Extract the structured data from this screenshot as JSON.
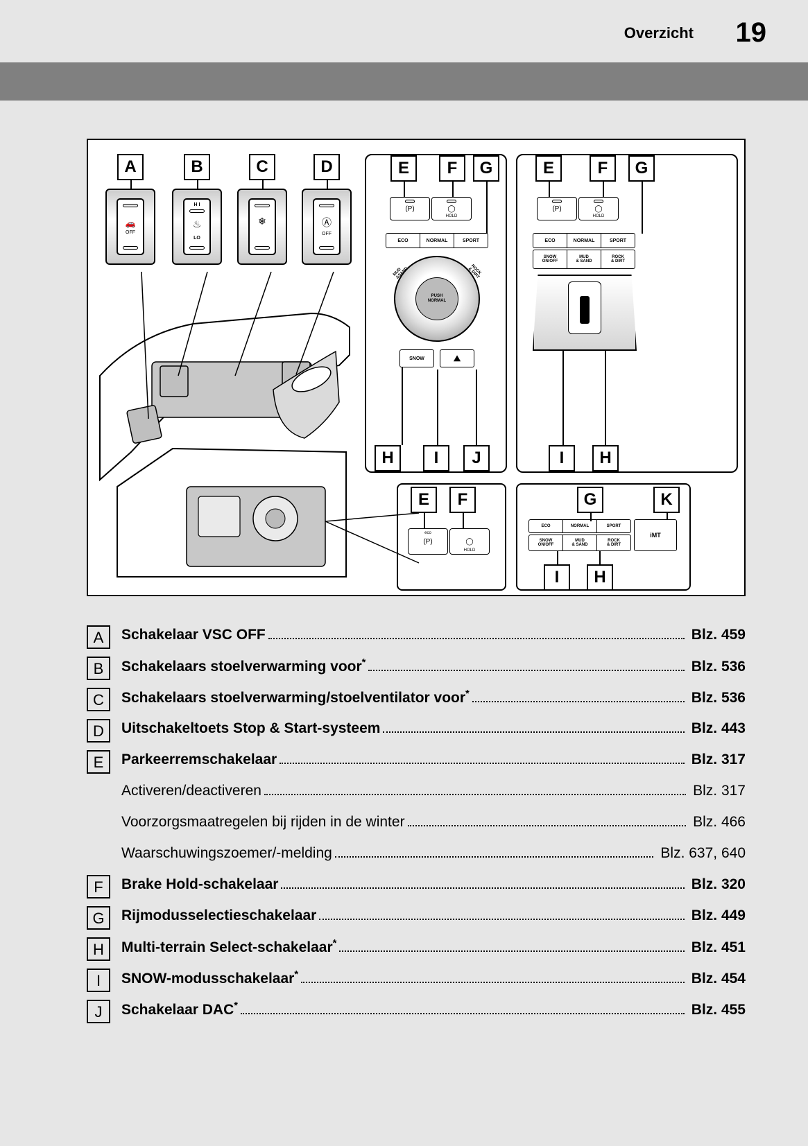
{
  "header": {
    "section_label": "Overzicht",
    "page_number": "19"
  },
  "colors": {
    "page_bg": "#e6e6e6",
    "gray_bar": "#808080",
    "diagram_bg": "#ffffff",
    "border": "#000000"
  },
  "diagram": {
    "top_callouts": [
      "A",
      "B",
      "C",
      "D",
      "E",
      "F",
      "G",
      "E",
      "F",
      "G"
    ],
    "mid_callouts_left": [
      "H",
      "I",
      "J"
    ],
    "mid_callouts_right": [
      "I",
      "H"
    ],
    "lower_callouts_left": [
      "E",
      "F"
    ],
    "lower_callouts_right": [
      "G",
      "K"
    ],
    "bottom_callouts": [
      "I",
      "H"
    ],
    "button_a": {
      "off": "OFF",
      "icon": "🚗"
    },
    "button_b": {
      "hi": "H I",
      "lo": "LO",
      "icon": "♨"
    },
    "button_c": {
      "icon": "❄♨"
    },
    "button_d": {
      "circle_a": "Ⓐ",
      "off": "OFF"
    },
    "panel_ef": {
      "p": "(P)",
      "hold": "HOLD",
      "eco": "eco"
    },
    "modes": [
      "ECO",
      "NORMAL",
      "SPORT"
    ],
    "terrain": [
      "SNOW\\nON/OFF",
      "MUD\\n& SAND",
      "ROCK\\n& DIRT"
    ],
    "terrain2": [
      "SNOW",
      "MUD\\n& SAND",
      "ROCK\\n& DIRT",
      "iMT"
    ],
    "dial": {
      "push": "PUSH",
      "normal": "NORMAL",
      "mud": "MUD\\n&SAND",
      "rock": "ROCK\\n& DIRT",
      "snow": "SNOW",
      "dac": "⛰"
    }
  },
  "legend": {
    "page_prefix": "Blz. ",
    "items": [
      {
        "letter": "A",
        "label": "Schakelaar VSC OFF",
        "bold": true,
        "page": "459"
      },
      {
        "letter": "B",
        "label": "Schakelaars stoelverwarming voor",
        "sup": "*",
        "bold": true,
        "page": "536"
      },
      {
        "letter": "C",
        "label": "Schakelaars stoelverwarming/stoelventilator voor",
        "sup": "*",
        "bold": true,
        "page": "536",
        "dots_style": "bold"
      },
      {
        "letter": "D",
        "label": "Uitschakeltoets Stop & Start-systeem ",
        "bold": true,
        "page": "443"
      },
      {
        "letter": "E",
        "label": "Parkeerremschakelaar",
        "bold": true,
        "page": "317"
      },
      {
        "letter": "",
        "label": "Activeren/deactiveren",
        "bold": false,
        "page": "317"
      },
      {
        "letter": "",
        "label": "Voorzorgsmaatregelen bij rijden in de winter ",
        "bold": false,
        "page": "466"
      },
      {
        "letter": "",
        "label": "Waarschuwingszoemer/-melding ",
        "bold": false,
        "page": "637, 640"
      },
      {
        "letter": "F",
        "label": "Brake Hold-schakelaar",
        "bold": true,
        "page": "320"
      },
      {
        "letter": "G",
        "label": "Rijmodusselectieschakelaar ",
        "bold": true,
        "page": "449"
      },
      {
        "letter": "H",
        "label": "Multi-terrain Select-schakelaar",
        "sup": "*",
        "bold": true,
        "page": "451"
      },
      {
        "letter": "I",
        "label": "SNOW-modusschakelaar",
        "sup": "*",
        "bold": true,
        "page": "454"
      },
      {
        "letter": "J",
        "label": "Schakelaar DAC",
        "sup": "*",
        "bold": true,
        "page": "455"
      }
    ]
  }
}
